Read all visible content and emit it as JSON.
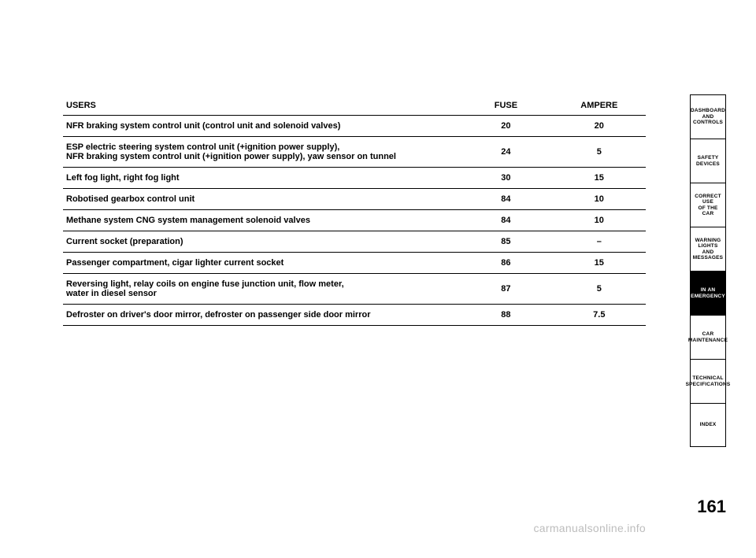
{
  "table": {
    "headers": {
      "users": "USERS",
      "fuse": "FUSE",
      "ampere": "AMPERE"
    },
    "rows": [
      {
        "users": "NFR braking system control unit (control unit and solenoid valves)",
        "fuse": "20",
        "amp": "20"
      },
      {
        "users": "ESP electric steering system control unit (+ignition power supply),\nNFR braking system control unit (+ignition power supply), yaw sensor on tunnel",
        "fuse": "24",
        "amp": "5"
      },
      {
        "users": "Left fog light, right fog light",
        "fuse": "30",
        "amp": "15"
      },
      {
        "users": "Robotised gearbox control unit",
        "fuse": "84",
        "amp": "10"
      },
      {
        "users": "Methane system CNG system management solenoid valves",
        "fuse": "84",
        "amp": "10"
      },
      {
        "users": "Current socket (preparation)",
        "fuse": "85",
        "amp": "–"
      },
      {
        "users": "Passenger compartment, cigar lighter current socket",
        "fuse": "86",
        "amp": "15"
      },
      {
        "users": "Reversing light, relay coils on engine fuse junction unit, flow meter,\nwater in diesel sensor",
        "fuse": "87",
        "amp": "5"
      },
      {
        "users": "Defroster on driver's door mirror, defroster on passenger side door mirror",
        "fuse": "88",
        "amp": "7.5"
      }
    ]
  },
  "tabs": [
    {
      "label": "DASHBOARD\nAND CONTROLS",
      "active": false
    },
    {
      "label": "SAFETY\nDEVICES",
      "active": false
    },
    {
      "label": "CORRECT USE\nOF THE CAR",
      "active": false
    },
    {
      "label": "WARNING\nLIGHTS AND\nMESSAGES",
      "active": false
    },
    {
      "label": "IN AN\nEMERGENCY",
      "active": true
    },
    {
      "label": "CAR\nMAINTENANCE",
      "active": false
    },
    {
      "label": "TECHNICAL\nSPECIFICATIONS",
      "active": false
    },
    {
      "label": "INDEX",
      "active": false
    }
  ],
  "page_number": "161",
  "watermark": "carmanualsonline.info",
  "colors": {
    "background": "#ffffff",
    "text": "#000000",
    "rule": "#000000",
    "tab_active_bg": "#000000",
    "tab_active_fg": "#ffffff",
    "watermark": "#bdbdbd"
  }
}
